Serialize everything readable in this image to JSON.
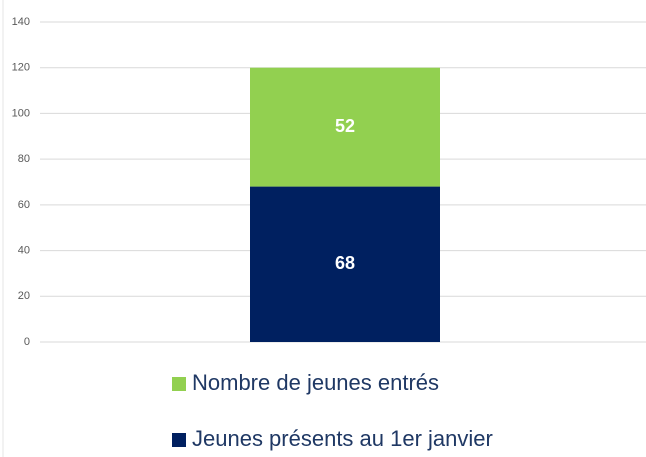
{
  "chart_data": {
    "type": "stacked_bar",
    "categories": [
      null
    ],
    "series": [
      {
        "name": "Jeunes présents au 1er janvier",
        "color": "#002060",
        "values": [
          68
        ]
      },
      {
        "name": "Nombre de jeunes entrés",
        "color": "#92d050",
        "values": [
          52
        ]
      }
    ],
    "ylim": [
      0,
      140
    ],
    "yticks": [
      0,
      20,
      40,
      60,
      80,
      100,
      120,
      140
    ],
    "grid": true,
    "legend": "bottom"
  }
}
